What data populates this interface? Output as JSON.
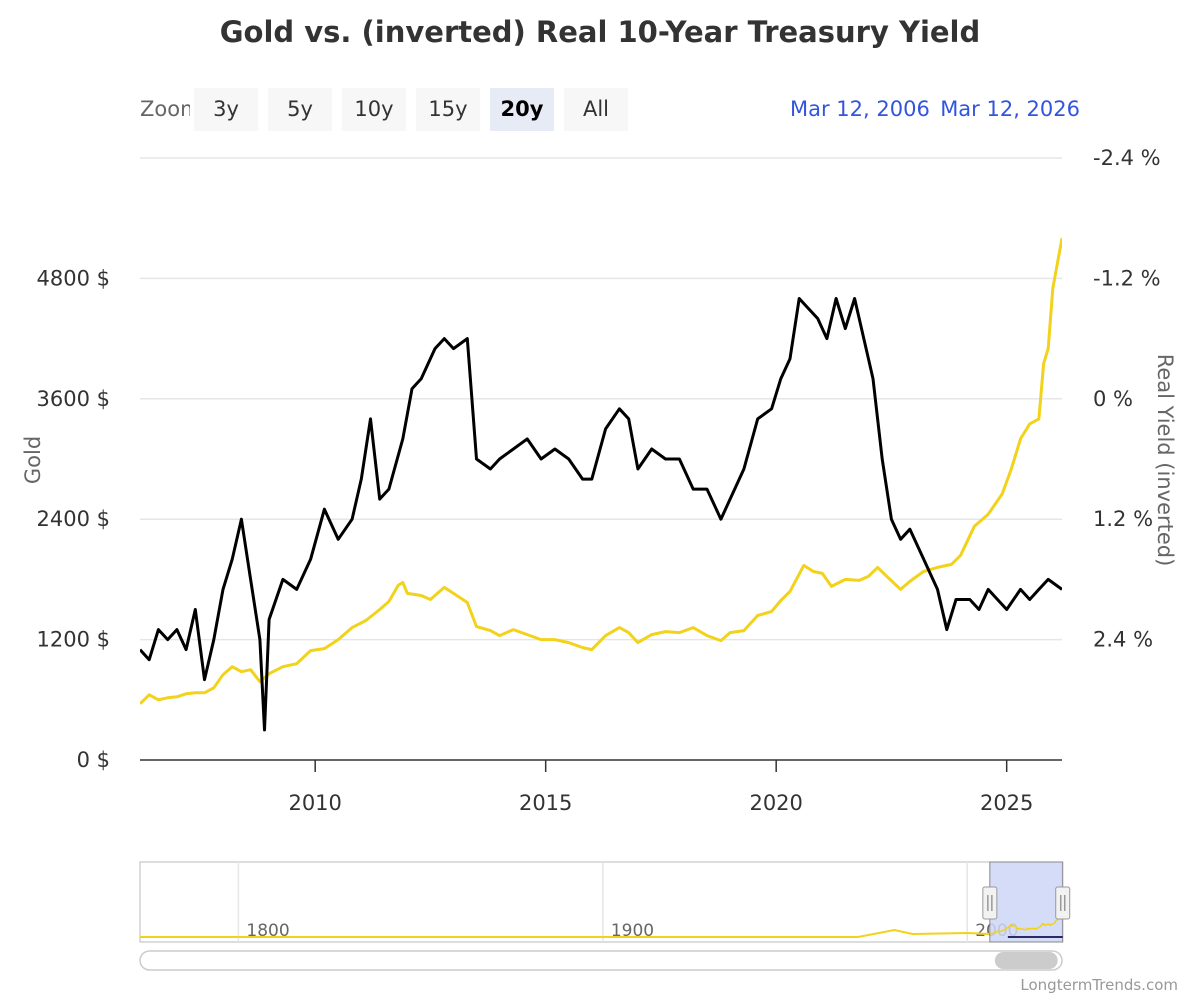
{
  "chart_data": {
    "type": "line",
    "title": "Gold vs. (inverted) Real 10-Year Treasury Yield",
    "y_left_label": "Gold",
    "y_right_label": "Real Yield (inverted)",
    "y_left_ticks": [
      "0 $",
      "1200 $",
      "2400 $",
      "3600 $",
      "4800 $"
    ],
    "y_left_tick_values": [
      0,
      1200,
      2400,
      3600,
      4800
    ],
    "y_left_range": [
      0,
      6000
    ],
    "y_right_ticks": [
      "-2.4 %",
      "-1.2 %",
      "0 %",
      "1.2 %",
      "2.4 %"
    ],
    "y_right_tick_values": [
      -2.4,
      -1.2,
      0,
      1.2,
      2.4
    ],
    "y_right_range": [
      -2.4,
      3.6
    ],
    "y_right_inverted": true,
    "x_ticks": [
      "2010",
      "2015",
      "2020",
      "2025"
    ],
    "x_tick_values": [
      2010,
      2015,
      2020,
      2025
    ],
    "x_range": [
      2006.2,
      2026.2
    ],
    "grid": true,
    "legend": "none",
    "series": [
      {
        "color": "#f2d21a",
        "axis": "left",
        "points": [
          [
            2006.2,
            560
          ],
          [
            2006.4,
            650
          ],
          [
            2006.6,
            600
          ],
          [
            2006.8,
            620
          ],
          [
            2007.0,
            630
          ],
          [
            2007.2,
            660
          ],
          [
            2007.4,
            670
          ],
          [
            2007.6,
            670
          ],
          [
            2007.8,
            720
          ],
          [
            2008.0,
            850
          ],
          [
            2008.2,
            930
          ],
          [
            2008.4,
            880
          ],
          [
            2008.6,
            900
          ],
          [
            2008.8,
            780
          ],
          [
            2009.0,
            860
          ],
          [
            2009.3,
            930
          ],
          [
            2009.6,
            960
          ],
          [
            2009.9,
            1090
          ],
          [
            2010.2,
            1110
          ],
          [
            2010.5,
            1200
          ],
          [
            2010.8,
            1320
          ],
          [
            2011.1,
            1390
          ],
          [
            2011.4,
            1500
          ],
          [
            2011.6,
            1580
          ],
          [
            2011.8,
            1740
          ],
          [
            2011.9,
            1770
          ],
          [
            2012.0,
            1660
          ],
          [
            2012.3,
            1640
          ],
          [
            2012.5,
            1600
          ],
          [
            2012.8,
            1720
          ],
          [
            2013.0,
            1660
          ],
          [
            2013.3,
            1570
          ],
          [
            2013.5,
            1330
          ],
          [
            2013.8,
            1290
          ],
          [
            2014.0,
            1240
          ],
          [
            2014.3,
            1300
          ],
          [
            2014.6,
            1250
          ],
          [
            2014.9,
            1200
          ],
          [
            2015.2,
            1200
          ],
          [
            2015.5,
            1170
          ],
          [
            2015.8,
            1120
          ],
          [
            2016.0,
            1100
          ],
          [
            2016.3,
            1240
          ],
          [
            2016.6,
            1320
          ],
          [
            2016.8,
            1270
          ],
          [
            2017.0,
            1170
          ],
          [
            2017.3,
            1250
          ],
          [
            2017.6,
            1280
          ],
          [
            2017.9,
            1270
          ],
          [
            2018.2,
            1320
          ],
          [
            2018.5,
            1240
          ],
          [
            2018.8,
            1190
          ],
          [
            2019.0,
            1270
          ],
          [
            2019.3,
            1290
          ],
          [
            2019.6,
            1440
          ],
          [
            2019.9,
            1480
          ],
          [
            2020.1,
            1590
          ],
          [
            2020.3,
            1680
          ],
          [
            2020.6,
            1940
          ],
          [
            2020.8,
            1880
          ],
          [
            2021.0,
            1860
          ],
          [
            2021.2,
            1730
          ],
          [
            2021.5,
            1800
          ],
          [
            2021.8,
            1790
          ],
          [
            2022.0,
            1830
          ],
          [
            2022.2,
            1920
          ],
          [
            2022.4,
            1830
          ],
          [
            2022.7,
            1700
          ],
          [
            2022.9,
            1780
          ],
          [
            2023.2,
            1880
          ],
          [
            2023.5,
            1920
          ],
          [
            2023.8,
            1950
          ],
          [
            2024.0,
            2040
          ],
          [
            2024.3,
            2330
          ],
          [
            2024.6,
            2450
          ],
          [
            2024.9,
            2650
          ],
          [
            2025.1,
            2900
          ],
          [
            2025.3,
            3200
          ],
          [
            2025.5,
            3350
          ],
          [
            2025.7,
            3400
          ],
          [
            2025.8,
            3950
          ],
          [
            2025.9,
            4100
          ],
          [
            2026.0,
            4700
          ],
          [
            2026.2,
            5200
          ]
        ]
      },
      {
        "color": "#000000",
        "axis": "right",
        "points": [
          [
            2006.2,
            2.5
          ],
          [
            2006.4,
            2.6
          ],
          [
            2006.6,
            2.3
          ],
          [
            2006.8,
            2.4
          ],
          [
            2007.0,
            2.3
          ],
          [
            2007.2,
            2.5
          ],
          [
            2007.4,
            2.1
          ],
          [
            2007.6,
            2.8
          ],
          [
            2007.8,
            2.4
          ],
          [
            2008.0,
            1.9
          ],
          [
            2008.2,
            1.6
          ],
          [
            2008.4,
            1.2
          ],
          [
            2008.6,
            1.8
          ],
          [
            2008.8,
            2.4
          ],
          [
            2008.9,
            3.3
          ],
          [
            2009.0,
            2.2
          ],
          [
            2009.3,
            1.8
          ],
          [
            2009.6,
            1.9
          ],
          [
            2009.9,
            1.6
          ],
          [
            2010.2,
            1.1
          ],
          [
            2010.5,
            1.4
          ],
          [
            2010.8,
            1.2
          ],
          [
            2011.0,
            0.8
          ],
          [
            2011.2,
            0.2
          ],
          [
            2011.4,
            1.0
          ],
          [
            2011.6,
            0.9
          ],
          [
            2011.9,
            0.4
          ],
          [
            2012.1,
            -0.1
          ],
          [
            2012.3,
            -0.2
          ],
          [
            2012.6,
            -0.5
          ],
          [
            2012.8,
            -0.6
          ],
          [
            2013.0,
            -0.5
          ],
          [
            2013.3,
            -0.6
          ],
          [
            2013.5,
            0.6
          ],
          [
            2013.8,
            0.7
          ],
          [
            2014.0,
            0.6
          ],
          [
            2014.3,
            0.5
          ],
          [
            2014.6,
            0.4
          ],
          [
            2014.9,
            0.6
          ],
          [
            2015.2,
            0.5
          ],
          [
            2015.5,
            0.6
          ],
          [
            2015.8,
            0.8
          ],
          [
            2016.0,
            0.8
          ],
          [
            2016.3,
            0.3
          ],
          [
            2016.6,
            0.1
          ],
          [
            2016.8,
            0.2
          ],
          [
            2017.0,
            0.7
          ],
          [
            2017.3,
            0.5
          ],
          [
            2017.6,
            0.6
          ],
          [
            2017.9,
            0.6
          ],
          [
            2018.2,
            0.9
          ],
          [
            2018.5,
            0.9
          ],
          [
            2018.8,
            1.2
          ],
          [
            2019.0,
            1.0
          ],
          [
            2019.3,
            0.7
          ],
          [
            2019.6,
            0.2
          ],
          [
            2019.9,
            0.1
          ],
          [
            2020.1,
            -0.2
          ],
          [
            2020.3,
            -0.4
          ],
          [
            2020.5,
            -1.0
          ],
          [
            2020.7,
            -0.9
          ],
          [
            2020.9,
            -0.8
          ],
          [
            2021.1,
            -0.6
          ],
          [
            2021.3,
            -1.0
          ],
          [
            2021.5,
            -0.7
          ],
          [
            2021.7,
            -1.0
          ],
          [
            2021.9,
            -0.6
          ],
          [
            2022.1,
            -0.2
          ],
          [
            2022.3,
            0.6
          ],
          [
            2022.5,
            1.2
          ],
          [
            2022.7,
            1.4
          ],
          [
            2022.9,
            1.3
          ],
          [
            2023.2,
            1.6
          ],
          [
            2023.5,
            1.9
          ],
          [
            2023.7,
            2.3
          ],
          [
            2023.9,
            2.0
          ],
          [
            2024.2,
            2.0
          ],
          [
            2024.4,
            2.1
          ],
          [
            2024.6,
            1.9
          ],
          [
            2024.8,
            2.0
          ],
          [
            2025.0,
            2.1
          ],
          [
            2025.3,
            1.9
          ],
          [
            2025.5,
            2.0
          ],
          [
            2025.7,
            1.9
          ],
          [
            2025.9,
            1.8
          ],
          [
            2026.2,
            1.9
          ]
        ]
      }
    ]
  },
  "range_selector": {
    "zoom_label": "Zoom",
    "buttons": [
      "3y",
      "5y",
      "10y",
      "15y",
      "20y",
      "All"
    ],
    "active": "20y",
    "from_date": "Mar 12, 2006",
    "to_date": "Mar 12, 2026"
  },
  "navigator": {
    "labels": [
      "1800",
      "1900",
      "2000"
    ],
    "label_years": [
      1800,
      1900,
      2000
    ],
    "year_range": [
      1773,
      2026
    ],
    "selection_years": [
      2006.2,
      2026.2
    ],
    "series_color": "#f2d21a",
    "selection_color": "#ccd6f6"
  },
  "credit": "LongtermTrends.com"
}
